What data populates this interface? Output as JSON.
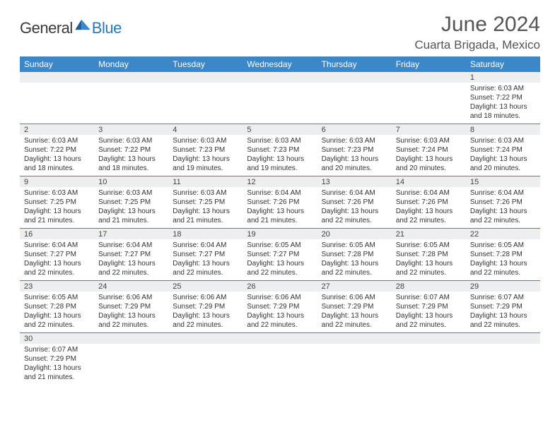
{
  "logo": {
    "general": "General",
    "blue": "Blue"
  },
  "title": "June 2024",
  "location": "Cuarta Brigada, Mexico",
  "colors": {
    "header_bg": "#3b87c8",
    "header_text": "#ffffff",
    "daynum_bg": "#eceeef",
    "border": "#3b87c8",
    "body_text": "#333333",
    "title_text": "#555555"
  },
  "weekdays": [
    "Sunday",
    "Monday",
    "Tuesday",
    "Wednesday",
    "Thursday",
    "Friday",
    "Saturday"
  ],
  "weeks": [
    [
      null,
      null,
      null,
      null,
      null,
      null,
      {
        "n": "1",
        "sr": "Sunrise: 6:03 AM",
        "ss": "Sunset: 7:22 PM",
        "d1": "Daylight: 13 hours",
        "d2": "and 18 minutes."
      }
    ],
    [
      {
        "n": "2",
        "sr": "Sunrise: 6:03 AM",
        "ss": "Sunset: 7:22 PM",
        "d1": "Daylight: 13 hours",
        "d2": "and 18 minutes."
      },
      {
        "n": "3",
        "sr": "Sunrise: 6:03 AM",
        "ss": "Sunset: 7:22 PM",
        "d1": "Daylight: 13 hours",
        "d2": "and 18 minutes."
      },
      {
        "n": "4",
        "sr": "Sunrise: 6:03 AM",
        "ss": "Sunset: 7:23 PM",
        "d1": "Daylight: 13 hours",
        "d2": "and 19 minutes."
      },
      {
        "n": "5",
        "sr": "Sunrise: 6:03 AM",
        "ss": "Sunset: 7:23 PM",
        "d1": "Daylight: 13 hours",
        "d2": "and 19 minutes."
      },
      {
        "n": "6",
        "sr": "Sunrise: 6:03 AM",
        "ss": "Sunset: 7:23 PM",
        "d1": "Daylight: 13 hours",
        "d2": "and 20 minutes."
      },
      {
        "n": "7",
        "sr": "Sunrise: 6:03 AM",
        "ss": "Sunset: 7:24 PM",
        "d1": "Daylight: 13 hours",
        "d2": "and 20 minutes."
      },
      {
        "n": "8",
        "sr": "Sunrise: 6:03 AM",
        "ss": "Sunset: 7:24 PM",
        "d1": "Daylight: 13 hours",
        "d2": "and 20 minutes."
      }
    ],
    [
      {
        "n": "9",
        "sr": "Sunrise: 6:03 AM",
        "ss": "Sunset: 7:25 PM",
        "d1": "Daylight: 13 hours",
        "d2": "and 21 minutes."
      },
      {
        "n": "10",
        "sr": "Sunrise: 6:03 AM",
        "ss": "Sunset: 7:25 PM",
        "d1": "Daylight: 13 hours",
        "d2": "and 21 minutes."
      },
      {
        "n": "11",
        "sr": "Sunrise: 6:03 AM",
        "ss": "Sunset: 7:25 PM",
        "d1": "Daylight: 13 hours",
        "d2": "and 21 minutes."
      },
      {
        "n": "12",
        "sr": "Sunrise: 6:04 AM",
        "ss": "Sunset: 7:26 PM",
        "d1": "Daylight: 13 hours",
        "d2": "and 21 minutes."
      },
      {
        "n": "13",
        "sr": "Sunrise: 6:04 AM",
        "ss": "Sunset: 7:26 PM",
        "d1": "Daylight: 13 hours",
        "d2": "and 22 minutes."
      },
      {
        "n": "14",
        "sr": "Sunrise: 6:04 AM",
        "ss": "Sunset: 7:26 PM",
        "d1": "Daylight: 13 hours",
        "d2": "and 22 minutes."
      },
      {
        "n": "15",
        "sr": "Sunrise: 6:04 AM",
        "ss": "Sunset: 7:26 PM",
        "d1": "Daylight: 13 hours",
        "d2": "and 22 minutes."
      }
    ],
    [
      {
        "n": "16",
        "sr": "Sunrise: 6:04 AM",
        "ss": "Sunset: 7:27 PM",
        "d1": "Daylight: 13 hours",
        "d2": "and 22 minutes."
      },
      {
        "n": "17",
        "sr": "Sunrise: 6:04 AM",
        "ss": "Sunset: 7:27 PM",
        "d1": "Daylight: 13 hours",
        "d2": "and 22 minutes."
      },
      {
        "n": "18",
        "sr": "Sunrise: 6:04 AM",
        "ss": "Sunset: 7:27 PM",
        "d1": "Daylight: 13 hours",
        "d2": "and 22 minutes."
      },
      {
        "n": "19",
        "sr": "Sunrise: 6:05 AM",
        "ss": "Sunset: 7:27 PM",
        "d1": "Daylight: 13 hours",
        "d2": "and 22 minutes."
      },
      {
        "n": "20",
        "sr": "Sunrise: 6:05 AM",
        "ss": "Sunset: 7:28 PM",
        "d1": "Daylight: 13 hours",
        "d2": "and 22 minutes."
      },
      {
        "n": "21",
        "sr": "Sunrise: 6:05 AM",
        "ss": "Sunset: 7:28 PM",
        "d1": "Daylight: 13 hours",
        "d2": "and 22 minutes."
      },
      {
        "n": "22",
        "sr": "Sunrise: 6:05 AM",
        "ss": "Sunset: 7:28 PM",
        "d1": "Daylight: 13 hours",
        "d2": "and 22 minutes."
      }
    ],
    [
      {
        "n": "23",
        "sr": "Sunrise: 6:05 AM",
        "ss": "Sunset: 7:28 PM",
        "d1": "Daylight: 13 hours",
        "d2": "and 22 minutes."
      },
      {
        "n": "24",
        "sr": "Sunrise: 6:06 AM",
        "ss": "Sunset: 7:29 PM",
        "d1": "Daylight: 13 hours",
        "d2": "and 22 minutes."
      },
      {
        "n": "25",
        "sr": "Sunrise: 6:06 AM",
        "ss": "Sunset: 7:29 PM",
        "d1": "Daylight: 13 hours",
        "d2": "and 22 minutes."
      },
      {
        "n": "26",
        "sr": "Sunrise: 6:06 AM",
        "ss": "Sunset: 7:29 PM",
        "d1": "Daylight: 13 hours",
        "d2": "and 22 minutes."
      },
      {
        "n": "27",
        "sr": "Sunrise: 6:06 AM",
        "ss": "Sunset: 7:29 PM",
        "d1": "Daylight: 13 hours",
        "d2": "and 22 minutes."
      },
      {
        "n": "28",
        "sr": "Sunrise: 6:07 AM",
        "ss": "Sunset: 7:29 PM",
        "d1": "Daylight: 13 hours",
        "d2": "and 22 minutes."
      },
      {
        "n": "29",
        "sr": "Sunrise: 6:07 AM",
        "ss": "Sunset: 7:29 PM",
        "d1": "Daylight: 13 hours",
        "d2": "and 22 minutes."
      }
    ],
    [
      {
        "n": "30",
        "sr": "Sunrise: 6:07 AM",
        "ss": "Sunset: 7:29 PM",
        "d1": "Daylight: 13 hours",
        "d2": "and 21 minutes."
      },
      null,
      null,
      null,
      null,
      null,
      null
    ]
  ]
}
